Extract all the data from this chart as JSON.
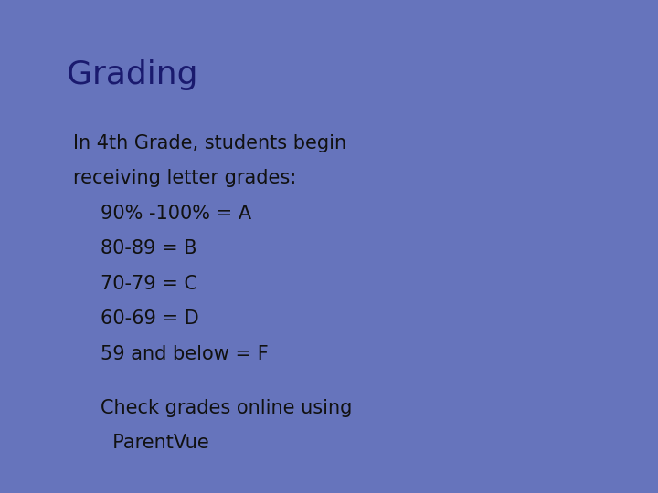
{
  "title": "Grading",
  "title_color": "#1a1a6e",
  "title_fontsize": 26,
  "title_bold": false,
  "body_color": "#111111",
  "body_fontsize": 15,
  "background_color": "#ffffff",
  "border_color": "#6674bc",
  "intro_line1": "In 4th Grade, students begin",
  "intro_line2": "receiving letter grades:",
  "bullet_char": "❖",
  "bullet_color": "#6674bc",
  "bullets": [
    "90% -100% = A",
    "80-89 = B",
    "70-79 = C",
    "60-69 = D",
    "59 and below = F"
  ],
  "bottom_bullet_line1": "Check grades online using",
  "bottom_bullet_line2": "  ParentVue"
}
